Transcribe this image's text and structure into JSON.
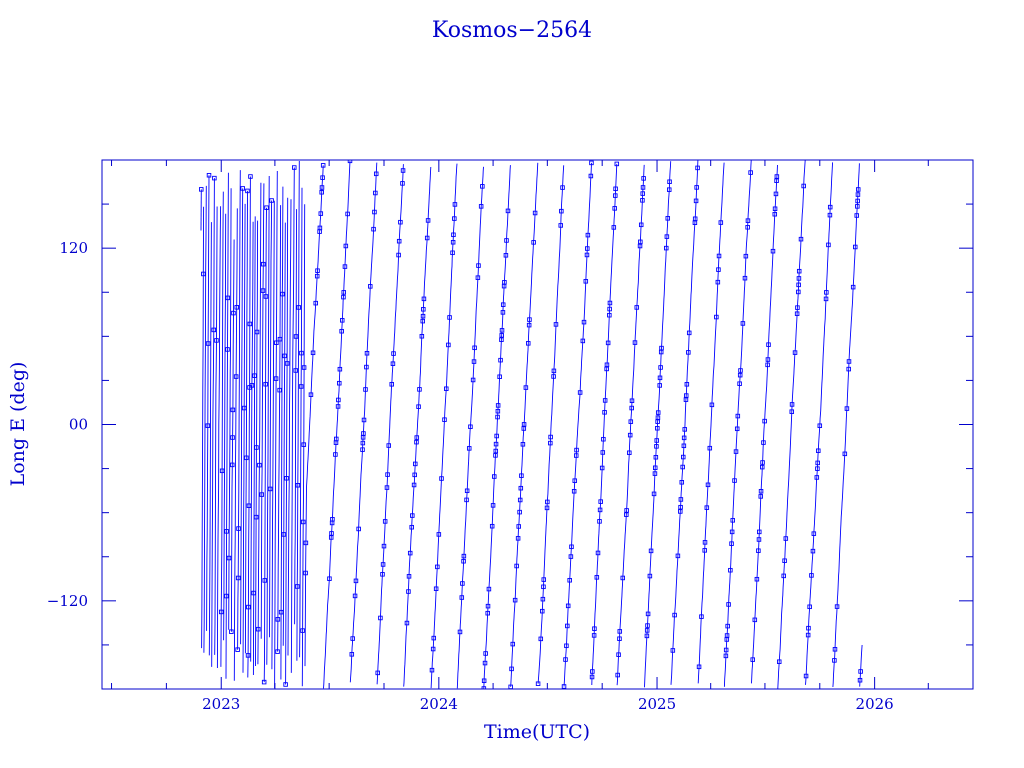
{
  "chart_data": {
    "type": "line",
    "title": "Kosmos−2564",
    "xlabel": "Time(UTC)",
    "ylabel": "Long E (deg)",
    "xlim": [
      "2022-06-15",
      "2026-06-15"
    ],
    "ylim": [
      -180,
      180
    ],
    "x_major_ticks": [
      "2023",
      "2024",
      "2025",
      "2026"
    ],
    "x_major_tick_dates": [
      "2023-01-01",
      "2024-01-01",
      "2025-01-01",
      "2026-01-01"
    ],
    "y_major_ticks": [
      120,
      0,
      -120
    ],
    "y_tick_labels": [
      "120",
      "00",
      "−120"
    ],
    "y_minor_step": 30,
    "x_minor_step_months": 3,
    "grid": false,
    "legend": "none",
    "series": [
      {
        "start": "2022-11-28",
        "end": "2025-12-11",
        "period_days": 1.008,
        "wrap": [
          -180,
          180
        ],
        "marker": "square",
        "color": "#0000ff"
      }
    ]
  },
  "colors": {
    "axis": "#0000cc",
    "data": "#0000ff",
    "trace": "#000000"
  }
}
